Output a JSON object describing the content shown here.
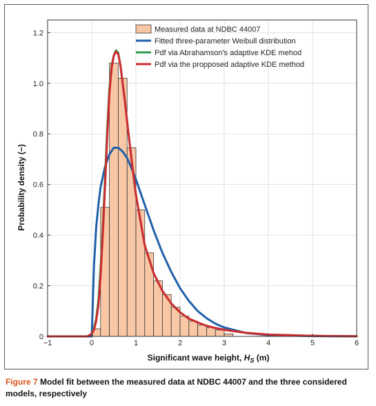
{
  "caption": {
    "label": "Figure 7",
    "text": "Model fit between the measured data at NDBC 44007 and the three considered models, respectively"
  },
  "chart_data": {
    "type": "bar",
    "title": "",
    "xlabel_main": "Significant wave height, ",
    "xlabel_var": "H",
    "xlabel_sub": "S",
    "xlabel_unit": " (m)",
    "ylabel": "Probability density (−)",
    "xlim": [
      -1,
      6
    ],
    "ylim": [
      0,
      1.25
    ],
    "xticks": [
      -1,
      0,
      1,
      2,
      3,
      4,
      5,
      6
    ],
    "xtick_labels": [
      "−1",
      "0",
      "1",
      "2",
      "3",
      "4",
      "5",
      "6"
    ],
    "yticks": [
      0,
      0.2,
      0.4,
      0.6,
      0.8,
      1.0,
      1.2
    ],
    "ytick_labels": [
      "0",
      "0.2",
      "0.4",
      "0.6",
      "0.8",
      "1.0",
      "1.2"
    ],
    "legend_position": "top-right",
    "histogram": {
      "name": "Measured data at NDBC 44007",
      "color": "#f7c7a6",
      "edge_color": "#222222",
      "bin_width": 0.2,
      "bin_starts": [
        0.0,
        0.2,
        0.4,
        0.6,
        0.8,
        1.0,
        1.2,
        1.4,
        1.6,
        1.8,
        2.0,
        2.2,
        2.4,
        2.6,
        2.8,
        3.0
      ],
      "values": [
        0.03,
        0.51,
        1.08,
        1.02,
        0.745,
        0.5,
        0.33,
        0.22,
        0.165,
        0.115,
        0.08,
        0.06,
        0.045,
        0.035,
        0.025,
        0.01
      ]
    },
    "series": [
      {
        "name": "Fitted three-parameter Weibull distribution",
        "color": "#1f5fa8",
        "x": [
          -1,
          0.0,
          0.05,
          0.1,
          0.15,
          0.2,
          0.3,
          0.4,
          0.5,
          0.6,
          0.7,
          0.8,
          0.9,
          1.0,
          1.2,
          1.4,
          1.6,
          1.8,
          2.0,
          2.2,
          2.4,
          2.6,
          2.8,
          3.0,
          3.5,
          4.0,
          5.0,
          6.0
        ],
        "y": [
          0,
          0,
          0.28,
          0.43,
          0.52,
          0.59,
          0.67,
          0.72,
          0.745,
          0.745,
          0.73,
          0.705,
          0.665,
          0.62,
          0.52,
          0.42,
          0.33,
          0.255,
          0.19,
          0.14,
          0.1,
          0.072,
          0.05,
          0.035,
          0.013,
          0.005,
          0.001,
          0
        ]
      },
      {
        "name": "Pdf via Abrahamson's adaptive KDE mehod",
        "color": "#2a9a4a",
        "x": [
          -1,
          -0.1,
          0.0,
          0.05,
          0.1,
          0.15,
          0.2,
          0.25,
          0.3,
          0.35,
          0.4,
          0.45,
          0.5,
          0.55,
          0.6,
          0.65,
          0.7,
          0.75,
          0.8,
          0.9,
          1.0,
          1.2,
          1.4,
          1.6,
          1.8,
          2.0,
          2.2,
          2.4,
          2.6,
          2.8,
          3.0,
          3.5,
          4.0,
          5.0,
          6.0
        ],
        "y": [
          0,
          0,
          0.01,
          0.03,
          0.07,
          0.14,
          0.27,
          0.43,
          0.62,
          0.82,
          0.98,
          1.07,
          1.11,
          1.13,
          1.12,
          1.07,
          1.0,
          0.93,
          0.85,
          0.7,
          0.56,
          0.36,
          0.25,
          0.18,
          0.13,
          0.095,
          0.07,
          0.055,
          0.042,
          0.033,
          0.026,
          0.014,
          0.007,
          0.002,
          0.0005
        ]
      },
      {
        "name": "Pdf via the propposed adaptive KDE method",
        "color": "#cf2a2f",
        "x": [
          -1,
          -0.1,
          0.0,
          0.05,
          0.1,
          0.15,
          0.2,
          0.25,
          0.3,
          0.35,
          0.4,
          0.45,
          0.5,
          0.55,
          0.6,
          0.65,
          0.7,
          0.75,
          0.8,
          0.9,
          1.0,
          1.2,
          1.4,
          1.6,
          1.8,
          2.0,
          2.2,
          2.4,
          2.6,
          2.8,
          3.0,
          3.5,
          4.0,
          5.0,
          6.0
        ],
        "y": [
          0,
          0,
          0.01,
          0.025,
          0.06,
          0.12,
          0.24,
          0.4,
          0.59,
          0.79,
          0.96,
          1.06,
          1.11,
          1.125,
          1.115,
          1.07,
          1.0,
          0.93,
          0.85,
          0.7,
          0.56,
          0.36,
          0.25,
          0.18,
          0.13,
          0.095,
          0.07,
          0.055,
          0.042,
          0.033,
          0.026,
          0.014,
          0.007,
          0.002,
          0.0005
        ]
      }
    ]
  }
}
